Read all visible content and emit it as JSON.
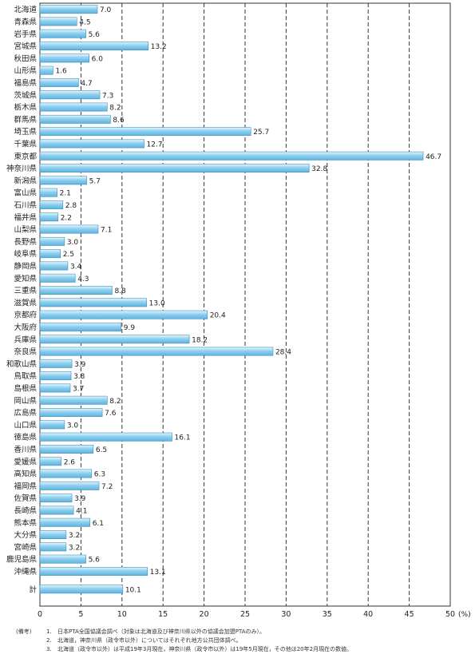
{
  "chart_data": {
    "type": "bar",
    "orientation": "horizontal",
    "unit": "(%)",
    "xlim": [
      0,
      50
    ],
    "xticks": [
      "0",
      "5",
      "10",
      "15",
      "20",
      "25",
      "30",
      "35",
      "40",
      "45",
      "50"
    ],
    "grid": "vertical dashed",
    "bar_color": "#8fd0ef",
    "categories": [
      "北海道",
      "青森県",
      "岩手県",
      "宮城県",
      "秋田県",
      "山形県",
      "福島県",
      "茨城県",
      "栃木県",
      "群馬県",
      "埼玉県",
      "千葉県",
      "東京都",
      "神奈川県",
      "新潟県",
      "富山県",
      "石川県",
      "福井県",
      "山梨県",
      "長野県",
      "岐阜県",
      "静岡県",
      "愛知県",
      "三重県",
      "滋賀県",
      "京都府",
      "大阪府",
      "兵庫県",
      "奈良県",
      "和歌山県",
      "鳥取県",
      "島根県",
      "岡山県",
      "広島県",
      "山口県",
      "徳島県",
      "香川県",
      "愛媛県",
      "高知県",
      "福岡県",
      "佐賀県",
      "長崎県",
      "熊本県",
      "大分県",
      "宮崎県",
      "鹿児島県",
      "沖縄県",
      "計"
    ],
    "values": [
      7.0,
      4.5,
      5.6,
      13.2,
      6.0,
      1.6,
      4.7,
      7.3,
      8.2,
      8.6,
      25.7,
      12.7,
      46.7,
      32.8,
      5.7,
      2.1,
      2.8,
      2.2,
      7.1,
      3.0,
      2.5,
      3.4,
      4.3,
      8.8,
      13.0,
      20.4,
      9.9,
      18.2,
      28.4,
      3.9,
      3.8,
      3.7,
      8.2,
      7.6,
      3.0,
      16.1,
      6.5,
      2.6,
      6.3,
      7.2,
      3.9,
      4.1,
      6.1,
      3.2,
      3.2,
      5.6,
      13.1,
      10.1
    ],
    "value_labels": [
      "7.0",
      "4.5",
      "5.6",
      "13.2",
      "6.0",
      "1.6",
      "4.7",
      "7.3",
      "8.2",
      "8.6",
      "25.7",
      "12.7",
      "46.7",
      "32.8",
      "5.7",
      "2.1",
      "2.8",
      "2.2",
      "7.1",
      "3.0",
      "2.5",
      "3.4",
      "4.3",
      "8.8",
      "13.0",
      "20.4",
      "9.9",
      "18.2",
      "28.4",
      "3.9",
      "3.8",
      "3.7",
      "8.2",
      "7.6",
      "3.0",
      "16.1",
      "6.5",
      "2.6",
      "6.3",
      "7.2",
      "3.9",
      "4.1",
      "6.1",
      "3.2",
      "3.2",
      "5.6",
      "13.1",
      "10.1"
    ]
  },
  "notes": {
    "label": "(備考)",
    "items": [
      {
        "num": "1.",
        "text": "日本PTA全国協議会調べ（対象は北海道及び神奈川県以外の協議会加盟PTAのみ）。"
      },
      {
        "num": "2.",
        "text": "北海道，神奈川県（政令市以外）についてはそれぞれ地方公共団体調べ。"
      },
      {
        "num": "3.",
        "text": "北海道（政令市以外）は平成19年3月現在，神奈川県（政令市以外）は19年5月現在，その他は20年2月現在の数値。"
      }
    ]
  }
}
